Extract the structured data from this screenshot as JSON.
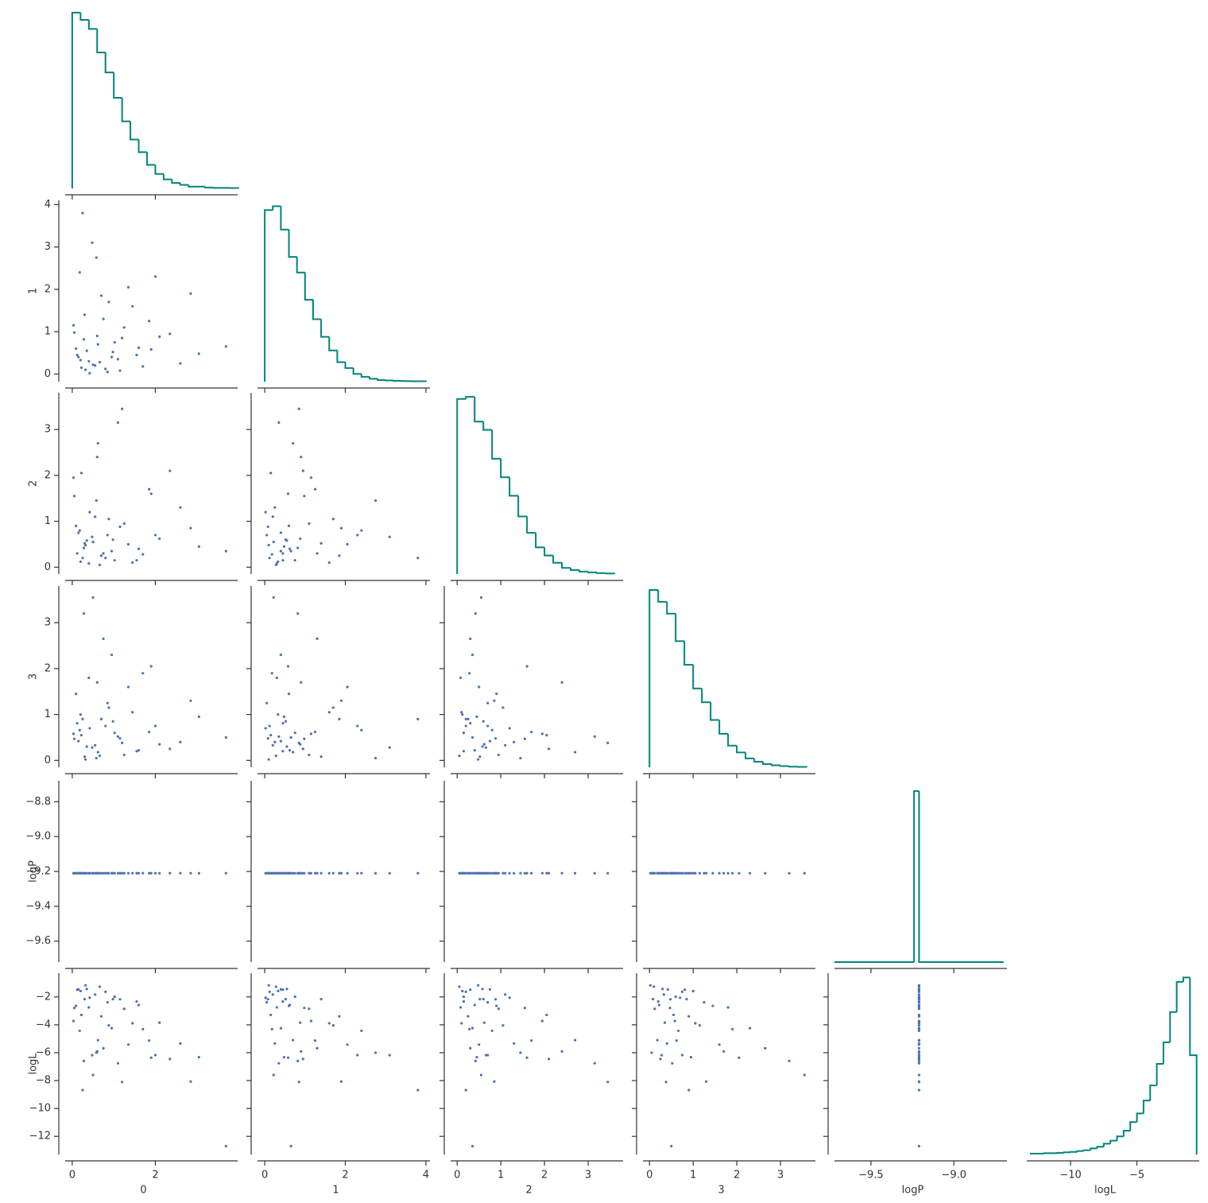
{
  "chart_data": {
    "type": "pairplot",
    "scatter_color": "#4c72b0",
    "hist_color": "#00847b",
    "variables": [
      {
        "name": "0",
        "lim": [
          -0.17,
          3.98
        ],
        "xticks": [
          0,
          2
        ],
        "yticks": [],
        "values": [
          0.12,
          0.55,
          1.02,
          0.3,
          0.85,
          1.6,
          0.05,
          0.4,
          2.1,
          0.7,
          0.22,
          1.25,
          0.95,
          0.18,
          2.6,
          0.62,
          1.45,
          0.35,
          0.8,
          3.05,
          0.48,
          1.1,
          0.28,
          1.85,
          0.09,
          0.66,
          1.35,
          0.42,
          2.35,
          0.75,
          0.15,
          1.7,
          0.58,
          0.98,
          3.7,
          0.25,
          1.2,
          0.5,
          2.85,
          0.03,
          1.55,
          0.88,
          0.32,
          2.0,
          0.6,
          1.15,
          0.2,
          1.9
        ]
      },
      {
        "name": "1",
        "lim": [
          -0.18,
          4.1
        ],
        "xticks": [
          0,
          2,
          4
        ],
        "yticks": [
          0,
          1,
          2,
          3,
          4
        ],
        "values": [
          0.45,
          0.2,
          0.75,
          1.4,
          0.05,
          0.62,
          0.98,
          0.3,
          0.88,
          1.85,
          0.15,
          1.1,
          0.4,
          2.4,
          0.25,
          0.7,
          1.6,
          0.55,
          0.12,
          0.48,
          3.1,
          0.35,
          0.82,
          1.25,
          0.6,
          0.28,
          2.05,
          0.02,
          0.95,
          1.3,
          0.4,
          0.18,
          2.75,
          0.52,
          0.65,
          3.8,
          0.85,
          0.22,
          1.9,
          1.15,
          0.45,
          1.7,
          0.1,
          2.3,
          0.9,
          0.08,
          0.33,
          0.58
        ]
      },
      {
        "name": "2",
        "lim": [
          -0.15,
          3.8
        ],
        "xticks": [
          0,
          1,
          2,
          3
        ],
        "yticks": [
          0,
          1,
          2,
          3
        ],
        "values": [
          0.3,
          1.1,
          0.15,
          0.52,
          0.7,
          0.4,
          1.55,
          0.08,
          0.62,
          0.25,
          2.05,
          0.95,
          0.35,
          0.8,
          1.3,
          2.7,
          0.1,
          0.58,
          0.2,
          0.45,
          0.66,
          3.15,
          0.42,
          1.7,
          0.9,
          0.05,
          0.5,
          1.2,
          2.1,
          0.3,
          0.75,
          0.28,
          1.45,
          0.6,
          0.35,
          0.2,
          3.45,
          0.55,
          0.85,
          1.95,
          0.15,
          1.05,
          0.48,
          0.7,
          2.4,
          0.88,
          0.12,
          1.6
        ]
      },
      {
        "name": "3",
        "lim": [
          -0.15,
          3.8
        ],
        "xticks": [
          0,
          1,
          2,
          3
        ],
        "yticks": [
          0,
          1,
          2,
          3
        ],
        "values": [
          0.81,
          0.33,
          0.6,
          0.08,
          1.25,
          0.22,
          0.47,
          1.8,
          0.35,
          0.9,
          0.55,
          0.12,
          2.3,
          0.66,
          0.4,
          0.18,
          1.05,
          0.3,
          0.75,
          0.95,
          0.28,
          0.52,
          3.2,
          0.62,
          1.45,
          0.1,
          1.6,
          0.7,
          0.25,
          2.65,
          0.42,
          1.9,
          0.05,
          0.85,
          0.5,
          0.9,
          0.38,
          3.55,
          1.3,
          0.58,
          0.2,
          1.15,
          0.02,
          0.75,
          1.7,
          0.48,
          1.0,
          2.05
        ]
      },
      {
        "name": "logP",
        "lim": [
          -9.72,
          -8.68
        ],
        "xticks": [
          {
            "value": -9.5,
            "label": "−9.5"
          },
          {
            "value": -9.0,
            "label": "−9.0"
          }
        ],
        "yticks": [
          {
            "value": -9.6,
            "label": "−9.6"
          },
          {
            "value": -9.4,
            "label": "−9.4"
          },
          {
            "value": -9.2,
            "label": "−9.2"
          },
          {
            "value": -9.0,
            "label": "−9.0"
          },
          {
            "value": -8.8,
            "label": "−8.8"
          }
        ],
        "values": [
          -9.21,
          -9.21,
          -9.21,
          -9.21,
          -9.21,
          -9.21,
          -9.21,
          -9.21,
          -9.21,
          -9.21,
          -9.21,
          -9.21,
          -9.21,
          -9.21,
          -9.21,
          -9.21,
          -9.21,
          -9.21,
          -9.21,
          -9.21,
          -9.21,
          -9.21,
          -9.21,
          -9.21,
          -9.21,
          -9.21,
          -9.21,
          -9.21,
          -9.21,
          -9.21,
          -9.21,
          -9.21,
          -9.21,
          -9.21,
          -9.21,
          -9.21,
          -9.21,
          -9.21,
          -9.21,
          -9.21,
          -9.21,
          -9.21,
          -9.21,
          -9.21,
          -9.21,
          -9.21,
          -9.21,
          -9.21
        ]
      },
      {
        "name": "logL",
        "lim": [
          -13.3,
          -0.3
        ],
        "xticks": [
          {
            "value": -10,
            "label": "−10"
          },
          {
            "value": -5,
            "label": "−5"
          }
        ],
        "yticks": [
          {
            "value": -12,
            "label": "−12"
          },
          {
            "value": -10,
            "label": "−10"
          },
          {
            "value": -8,
            "label": "−8"
          },
          {
            "value": -6,
            "label": "−6"
          },
          {
            "value": -4,
            "label": "−4"
          },
          {
            "value": -2,
            "label": "−2"
          }
        ],
        "values": [
          -1.48,
          -1.83,
          -1.99,
          -2.16,
          -2.39,
          -2.58,
          -2.79,
          -2.75,
          -3.85,
          -3.39,
          -3.29,
          -2.85,
          -4.24,
          -4.43,
          -5.34,
          -5.1,
          -3.89,
          -1.43,
          -1.63,
          -6.32,
          -6.18,
          -6.76,
          -6.59,
          -5.13,
          -2.64,
          -1.27,
          -5.42,
          -2.06,
          -6.45,
          -5.68,
          -1.46,
          -4.31,
          -6.0,
          -2.16,
          -12.7,
          -8.68,
          -8.1,
          -7.6,
          -8.07,
          -3.73,
          -2.33,
          -4.04,
          -1.17,
          -6.17,
          -5.91,
          -2.17,
          -1.58,
          -6.36
        ]
      }
    ],
    "histograms": [
      {
        "bins": [
          0,
          0.2,
          0.4,
          0.6,
          0.8,
          1.0,
          1.2,
          1.4,
          1.6,
          1.8,
          2.0,
          2.2,
          2.4,
          2.6,
          2.8,
          3.0,
          3.2,
          3.4,
          3.6,
          3.8,
          4.0
        ],
        "counts": [
          970,
          930,
          880,
          750,
          640,
          500,
          370,
          270,
          200,
          130,
          80,
          50,
          30,
          20,
          10,
          10,
          5,
          3,
          3,
          2
        ],
        "ylim": [
          0,
          1000
        ]
      },
      {
        "bins": [
          0,
          0.2,
          0.4,
          0.6,
          0.8,
          1.0,
          1.2,
          1.4,
          1.6,
          1.8,
          2.0,
          2.2,
          2.4,
          2.6,
          2.8,
          3.0,
          3.2,
          3.4,
          3.6,
          3.8,
          4.0
        ],
        "counts": [
          880,
          900,
          780,
          640,
          560,
          420,
          320,
          230,
          160,
          100,
          70,
          40,
          25,
          15,
          8,
          6,
          4,
          3,
          2,
          2
        ],
        "ylim": [
          0,
          930
        ]
      },
      {
        "bins": [
          0,
          0.2,
          0.4,
          0.6,
          0.8,
          1.0,
          1.2,
          1.4,
          1.6,
          1.8,
          2.0,
          2.2,
          2.4,
          2.6,
          2.8,
          3.0,
          3.2,
          3.4,
          3.6
        ],
        "counts": [
          850,
          860,
          740,
          700,
          560,
          470,
          380,
          280,
          200,
          130,
          90,
          55,
          30,
          20,
          12,
          8,
          5,
          3
        ],
        "ylim": [
          0,
          880
        ]
      },
      {
        "bins": [
          0,
          0.2,
          0.4,
          0.6,
          0.8,
          1.0,
          1.2,
          1.4,
          1.6,
          1.8,
          2.0,
          2.2,
          2.4,
          2.6,
          2.8,
          3.0,
          3.2,
          3.4,
          3.6
        ],
        "counts": [
          900,
          840,
          780,
          640,
          520,
          400,
          330,
          240,
          170,
          110,
          75,
          45,
          28,
          16,
          10,
          6,
          3,
          2
        ],
        "ylim": [
          0,
          920
        ]
      },
      {
        "bins": [
          -9.72,
          -9.24,
          -9.21,
          -8.7
        ],
        "counts": [
          0,
          10000,
          0
        ],
        "ylim": [
          0,
          10600
        ]
      },
      {
        "bins": [
          -13.0,
          -12.5,
          -12.0,
          -11.5,
          -11.0,
          -10.5,
          -10.0,
          -9.5,
          -9.0,
          -8.5,
          -8.0,
          -7.5,
          -7.0,
          -6.5,
          -6.0,
          -5.5,
          -5.0,
          -4.5,
          -4.0,
          -3.5,
          -3.0,
          -2.5,
          -2.0,
          -1.5,
          -1.0,
          -0.5
        ],
        "counts": [
          2,
          2,
          3,
          3,
          4,
          5,
          6,
          8,
          10,
          14,
          18,
          25,
          32,
          42,
          55,
          75,
          95,
          125,
          160,
          210,
          260,
          330,
          400,
          410,
          230
        ],
        "ylim": [
          0,
          420
        ]
      }
    ]
  }
}
